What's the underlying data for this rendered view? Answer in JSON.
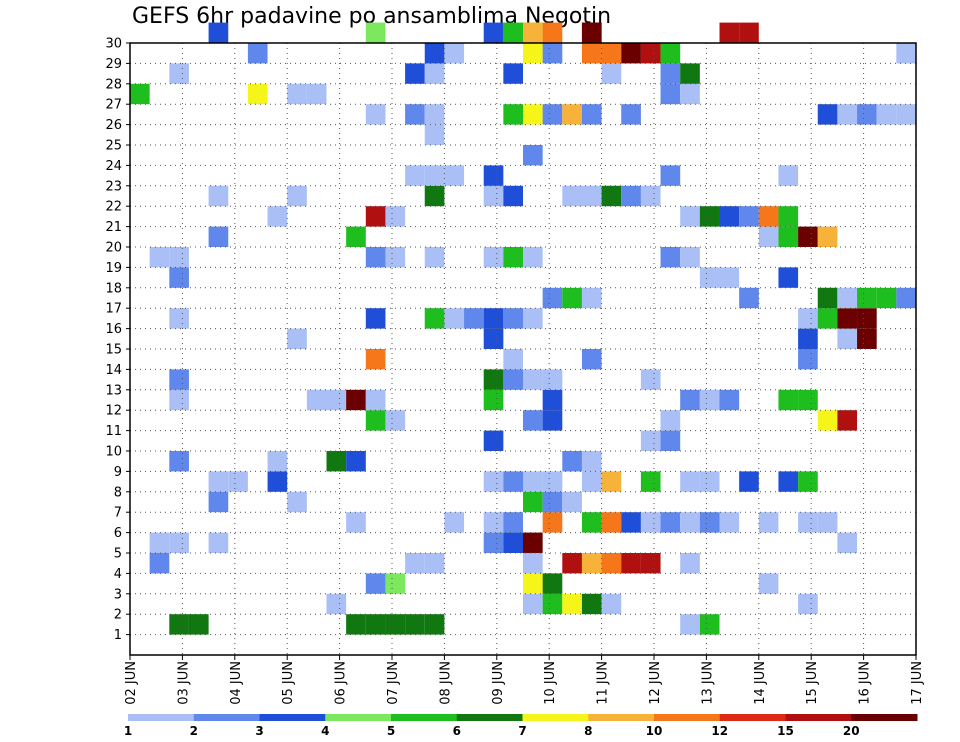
{
  "title": "GEFS 6hr padavine po ansamblima Negotin",
  "colorbar": {
    "labels": [
      "1",
      "2",
      "3",
      "4",
      "5",
      "6",
      "7",
      "8",
      "10",
      "12",
      "15",
      "20"
    ],
    "colors": [
      "#a9bff5",
      "#5f87ec",
      "#1f4fd9",
      "#7ce85e",
      "#1fbe1f",
      "#117811",
      "#f5f51a",
      "#f7b23a",
      "#f5771a",
      "#dd2a14",
      "#b01010",
      "#6b0000"
    ]
  },
  "chart_data": {
    "type": "heatmap",
    "title": "GEFS 6hr padavine po ansamblima Negotin",
    "xlabel": "",
    "ylabel": "",
    "x_tick_labels": [
      "02 JUN",
      "03 JUN",
      "04 JUN",
      "05 JUN",
      "06 JUN",
      "07 JUN",
      "08 JUN",
      "09 JUN",
      "10 JUN",
      "11 JUN",
      "12 JUN",
      "13 JUN",
      "14 JUN",
      "15 JUN",
      "16 JUN",
      "17 JUN"
    ],
    "y_tick_labels": [
      "1",
      "2",
      "3",
      "4",
      "5",
      "6",
      "7",
      "8",
      "9",
      "10",
      "11",
      "12",
      "13",
      "14",
      "15",
      "16",
      "17",
      "18",
      "19",
      "20",
      "21",
      "22",
      "23",
      "24",
      "25",
      "26",
      "27",
      "28",
      "29",
      "30"
    ],
    "x_step_index_range": [
      0,
      60
    ],
    "y_member_range": [
      0,
      30
    ],
    "value_units": "mm / 6h",
    "color_bins": [
      1,
      2,
      3,
      4,
      5,
      6,
      7,
      8,
      10,
      12,
      15,
      20
    ],
    "grid": true,
    "cells": [
      [
        4,
        30,
        3
      ],
      [
        12,
        30,
        4
      ],
      [
        18,
        30,
        3
      ],
      [
        19,
        30,
        5
      ],
      [
        20,
        30,
        5
      ],
      [
        20,
        30,
        7
      ],
      [
        20,
        30,
        8
      ],
      [
        21,
        30,
        10
      ],
      [
        23,
        30,
        20
      ],
      [
        23,
        30,
        25
      ],
      [
        30,
        30,
        15
      ],
      [
        31,
        30,
        15
      ],
      [
        2,
        1,
        6
      ],
      [
        3,
        1,
        6
      ],
      [
        11,
        1,
        6
      ],
      [
        12,
        1,
        6
      ],
      [
        13,
        1,
        6
      ],
      [
        14,
        1,
        6
      ],
      [
        15,
        1,
        6
      ],
      [
        28,
        1,
        1
      ],
      [
        29,
        1,
        5
      ],
      [
        10,
        2,
        1
      ],
      [
        20,
        2,
        1
      ],
      [
        21,
        2,
        5
      ],
      [
        22,
        2,
        7
      ],
      [
        23,
        2,
        6
      ],
      [
        24,
        2,
        1
      ],
      [
        34,
        2,
        1
      ],
      [
        12,
        3,
        2
      ],
      [
        13,
        3,
        4
      ],
      [
        20,
        3,
        7
      ],
      [
        21,
        3,
        6
      ],
      [
        32,
        3,
        1
      ],
      [
        1,
        4,
        2
      ],
      [
        14,
        4,
        1
      ],
      [
        15,
        4,
        1
      ],
      [
        20,
        4,
        1
      ],
      [
        22,
        4,
        15
      ],
      [
        23,
        4,
        8
      ],
      [
        24,
        4,
        10
      ],
      [
        25,
        4,
        15
      ],
      [
        26,
        4,
        15
      ],
      [
        28,
        4,
        1
      ],
      [
        1,
        5,
        1
      ],
      [
        2,
        5,
        1
      ],
      [
        4,
        5,
        1
      ],
      [
        18,
        5,
        2
      ],
      [
        19,
        5,
        3
      ],
      [
        20,
        5,
        20
      ],
      [
        36,
        5,
        1
      ],
      [
        11,
        6,
        1
      ],
      [
        16,
        6,
        1
      ],
      [
        18,
        6,
        1
      ],
      [
        19,
        6,
        2
      ],
      [
        21,
        6,
        10
      ],
      [
        23,
        6,
        5
      ],
      [
        24,
        6,
        10
      ],
      [
        25,
        6,
        3
      ],
      [
        26,
        6,
        1
      ],
      [
        27,
        6,
        2
      ],
      [
        28,
        6,
        1
      ],
      [
        29,
        6,
        2
      ],
      [
        30,
        6,
        1
      ],
      [
        32,
        6,
        1
      ],
      [
        34,
        6,
        1
      ],
      [
        35,
        6,
        1
      ],
      [
        4,
        7,
        2
      ],
      [
        8,
        7,
        1
      ],
      [
        20,
        7,
        5
      ],
      [
        21,
        7,
        2
      ],
      [
        22,
        7,
        1
      ],
      [
        4,
        8,
        1
      ],
      [
        5,
        8,
        1
      ],
      [
        7,
        8,
        3
      ],
      [
        18,
        8,
        1
      ],
      [
        19,
        8,
        2
      ],
      [
        20,
        8,
        1
      ],
      [
        21,
        8,
        1
      ],
      [
        23,
        8,
        1
      ],
      [
        24,
        8,
        8
      ],
      [
        26,
        8,
        5
      ],
      [
        28,
        8,
        1
      ],
      [
        29,
        8,
        1
      ],
      [
        31,
        8,
        3
      ],
      [
        33,
        8,
        3
      ],
      [
        34,
        8,
        5
      ],
      [
        2,
        9,
        2
      ],
      [
        7,
        9,
        1
      ],
      [
        10,
        9,
        6
      ],
      [
        11,
        9,
        3
      ],
      [
        22,
        9,
        2
      ],
      [
        23,
        9,
        1
      ],
      [
        18,
        10,
        3
      ],
      [
        26,
        10,
        1
      ],
      [
        27,
        10,
        2
      ],
      [
        12,
        11,
        5
      ],
      [
        13,
        11,
        1
      ],
      [
        20,
        11,
        2
      ],
      [
        21,
        11,
        3
      ],
      [
        27,
        11,
        1
      ],
      [
        35,
        11,
        7
      ],
      [
        36,
        11,
        15
      ],
      [
        2,
        12,
        1
      ],
      [
        9,
        12,
        1
      ],
      [
        10,
        12,
        1
      ],
      [
        11,
        12,
        20
      ],
      [
        12,
        12,
        1
      ],
      [
        18,
        12,
        5
      ],
      [
        21,
        12,
        3
      ],
      [
        28,
        12,
        2
      ],
      [
        29,
        12,
        1
      ],
      [
        30,
        12,
        2
      ],
      [
        33,
        12,
        5
      ],
      [
        34,
        12,
        5
      ],
      [
        2,
        13,
        2
      ],
      [
        18,
        13,
        6
      ],
      [
        19,
        13,
        2
      ],
      [
        20,
        13,
        1
      ],
      [
        21,
        13,
        1
      ],
      [
        26,
        13,
        1
      ],
      [
        12,
        14,
        10
      ],
      [
        19,
        14,
        1
      ],
      [
        23,
        14,
        2
      ],
      [
        34,
        14,
        2
      ],
      [
        8,
        15,
        1
      ],
      [
        18,
        15,
        3
      ],
      [
        34,
        15,
        3
      ],
      [
        36,
        15,
        1
      ],
      [
        37,
        15,
        20
      ],
      [
        2,
        16,
        1
      ],
      [
        12,
        16,
        3
      ],
      [
        15,
        16,
        5
      ],
      [
        16,
        16,
        1
      ],
      [
        17,
        16,
        2
      ],
      [
        18,
        16,
        3
      ],
      [
        19,
        16,
        2
      ],
      [
        20,
        16,
        1
      ],
      [
        34,
        16,
        1
      ],
      [
        35,
        16,
        5
      ],
      [
        36,
        16,
        20
      ],
      [
        37,
        16,
        20
      ],
      [
        21,
        17,
        2
      ],
      [
        22,
        17,
        5
      ],
      [
        23,
        17,
        1
      ],
      [
        31,
        17,
        2
      ],
      [
        35,
        17,
        6
      ],
      [
        36,
        17,
        7
      ],
      [
        36,
        17,
        1
      ],
      [
        37,
        17,
        5
      ],
      [
        38,
        17,
        5
      ],
      [
        39,
        17,
        2
      ],
      [
        2,
        18,
        2
      ],
      [
        29,
        18,
        1
      ],
      [
        30,
        18,
        1
      ],
      [
        33,
        18,
        3
      ],
      [
        1,
        19,
        1
      ],
      [
        2,
        19,
        1
      ],
      [
        12,
        19,
        2
      ],
      [
        13,
        19,
        1
      ],
      [
        15,
        19,
        1
      ],
      [
        18,
        19,
        1
      ],
      [
        19,
        19,
        5
      ],
      [
        20,
        19,
        1
      ],
      [
        27,
        19,
        2
      ],
      [
        28,
        19,
        1
      ],
      [
        4,
        20,
        2
      ],
      [
        11,
        20,
        5
      ],
      [
        32,
        20,
        1
      ],
      [
        33,
        20,
        5
      ],
      [
        34,
        20,
        20
      ],
      [
        35,
        20,
        8
      ],
      [
        7,
        21,
        1
      ],
      [
        12,
        21,
        15
      ],
      [
        13,
        21,
        1
      ],
      [
        28,
        21,
        1
      ],
      [
        29,
        21,
        6
      ],
      [
        30,
        21,
        3
      ],
      [
        31,
        21,
        2
      ],
      [
        32,
        21,
        10
      ],
      [
        33,
        21,
        5
      ],
      [
        4,
        22,
        1
      ],
      [
        8,
        22,
        1
      ],
      [
        15,
        22,
        6
      ],
      [
        18,
        22,
        1
      ],
      [
        19,
        22,
        3
      ],
      [
        22,
        22,
        1
      ],
      [
        23,
        22,
        1
      ],
      [
        24,
        22,
        6
      ],
      [
        25,
        22,
        2
      ],
      [
        26,
        22,
        1
      ],
      [
        14,
        23,
        1
      ],
      [
        15,
        23,
        1
      ],
      [
        16,
        23,
        1
      ],
      [
        18,
        23,
        3
      ],
      [
        27,
        23,
        2
      ],
      [
        33,
        23,
        1
      ],
      [
        20,
        24,
        2
      ],
      [
        15,
        25,
        1
      ],
      [
        12,
        26,
        1
      ],
      [
        14,
        26,
        2
      ],
      [
        15,
        26,
        1
      ],
      [
        19,
        26,
        5
      ],
      [
        20,
        26,
        7
      ],
      [
        21,
        26,
        2
      ],
      [
        22,
        26,
        8
      ],
      [
        23,
        26,
        2
      ],
      [
        25,
        26,
        2
      ],
      [
        35,
        26,
        3
      ],
      [
        36,
        26,
        1
      ],
      [
        37,
        26,
        2
      ],
      [
        38,
        26,
        1
      ],
      [
        39,
        26,
        1
      ],
      [
        0,
        27,
        5
      ],
      [
        6,
        27,
        7
      ],
      [
        8,
        27,
        1
      ],
      [
        9,
        27,
        1
      ],
      [
        27,
        27,
        2
      ],
      [
        28,
        27,
        1
      ],
      [
        2,
        28,
        1
      ],
      [
        14,
        28,
        3
      ],
      [
        15,
        28,
        1
      ],
      [
        19,
        28,
        3
      ],
      [
        24,
        28,
        1
      ],
      [
        27,
        28,
        2
      ],
      [
        28,
        28,
        6
      ],
      [
        6,
        29,
        2
      ],
      [
        15,
        29,
        3
      ],
      [
        16,
        29,
        1
      ],
      [
        20,
        29,
        7
      ],
      [
        21,
        29,
        2
      ],
      [
        23,
        29,
        10
      ],
      [
        24,
        29,
        10
      ],
      [
        25,
        29,
        20
      ],
      [
        26,
        29,
        15
      ],
      [
        27,
        29,
        5
      ],
      [
        39,
        29,
        1
      ]
    ]
  }
}
